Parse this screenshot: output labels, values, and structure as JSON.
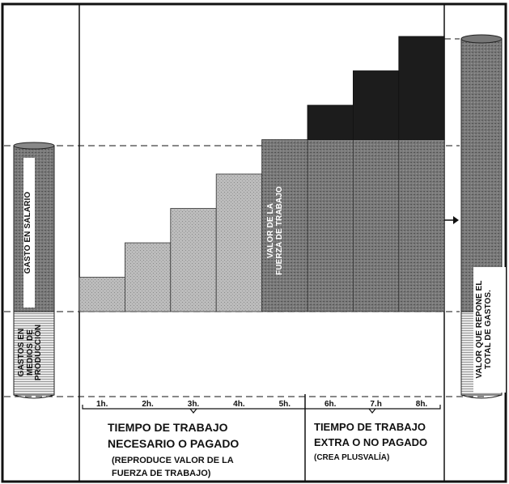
{
  "left_cylinder": {
    "salary_label": "GASTO EN SALARIO",
    "means_label": "GASTOS EN\nMEDIOS DE\nPRODUCCIÓN"
  },
  "bar_label": "VALOR DE LA\nFUERZA DE TRABAJO",
  "right_cylinder_label": "VALOR QUE REPONE EL\nTOTAL DE GASTOS.",
  "hours": [
    "1h.",
    "2h.",
    "3h.",
    "4h.",
    "5h.",
    "6h.",
    "7.h",
    "8h."
  ],
  "steps": [
    1,
    2,
    3,
    4,
    5,
    6,
    7,
    8
  ],
  "necessary": {
    "title_line1": "TIEMPO DE TRABAJO",
    "title_line2": "NECESARIO O PAGADO",
    "sub_line1": "(REPRODUCE VALOR DE LA",
    "sub_line2": "FUERZA DE TRABAJO)"
  },
  "extra": {
    "title_line1": "TIEMPO DE TRABAJO",
    "title_line2": "EXTRA O NO PAGADO",
    "sub_line1": "(CREA PLUSVALÍA)"
  },
  "colors": {
    "dark": "#1c1c1c",
    "stipple": "#6e6e6e",
    "light": "#b4b4b4",
    "line": "#111111"
  }
}
